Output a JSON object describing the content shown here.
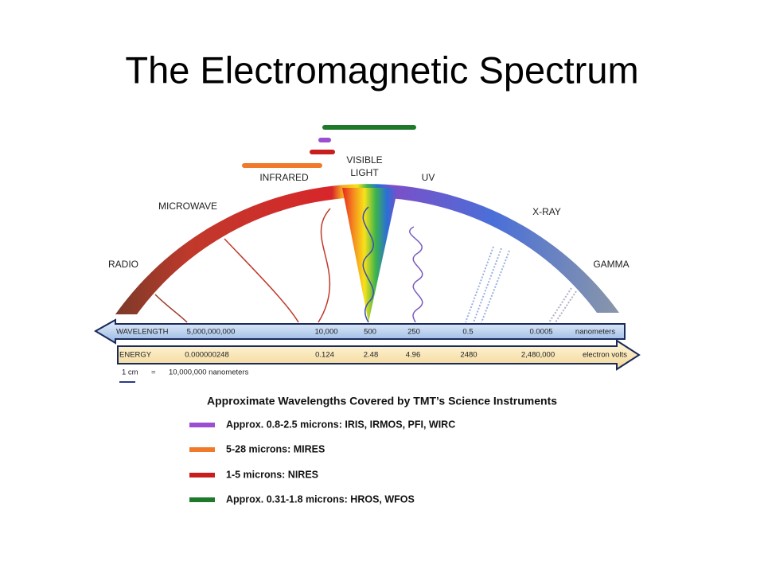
{
  "title": "The Electromagnetic Spectrum",
  "bands": [
    "RADIO",
    "MICROWAVE",
    "INFRARED",
    "UV",
    "X-RAY",
    "GAMMA"
  ],
  "visible_lines": [
    "VISIBLE",
    "LIGHT"
  ],
  "wavelength": {
    "label": "WAVELENGTH",
    "values": [
      "5,000,000,000",
      "10,000",
      "500",
      "250",
      "0.5",
      "0.0005"
    ],
    "unit": "nanometers"
  },
  "energy": {
    "label": "ENERGY",
    "values": [
      "0.000000248",
      "0.124",
      "2.48",
      "4.96",
      "2480",
      "2,480,000"
    ],
    "unit": "electron volts"
  },
  "scale": {
    "length": "1 cm",
    "equals": "=",
    "value": "10,000,000 nanometers"
  },
  "legend": {
    "title": "Approximate Wavelengths Covered by TMT’s Science Instruments",
    "items": [
      {
        "label": "Approx. 0.8-2.5 microns: IRIS, IRMOS, PFI, WIRC",
        "color": "#9b4fd0"
      },
      {
        "label": "5-28 microns: MIRES",
        "color": "#f07a2a"
      },
      {
        "label": "1-5 microns: NIRES",
        "color": "#c81e1e"
      },
      {
        "label": "Approx. 0.31-1.8 microns: HROS, WFOS",
        "color": "#1e7a2a"
      }
    ]
  }
}
